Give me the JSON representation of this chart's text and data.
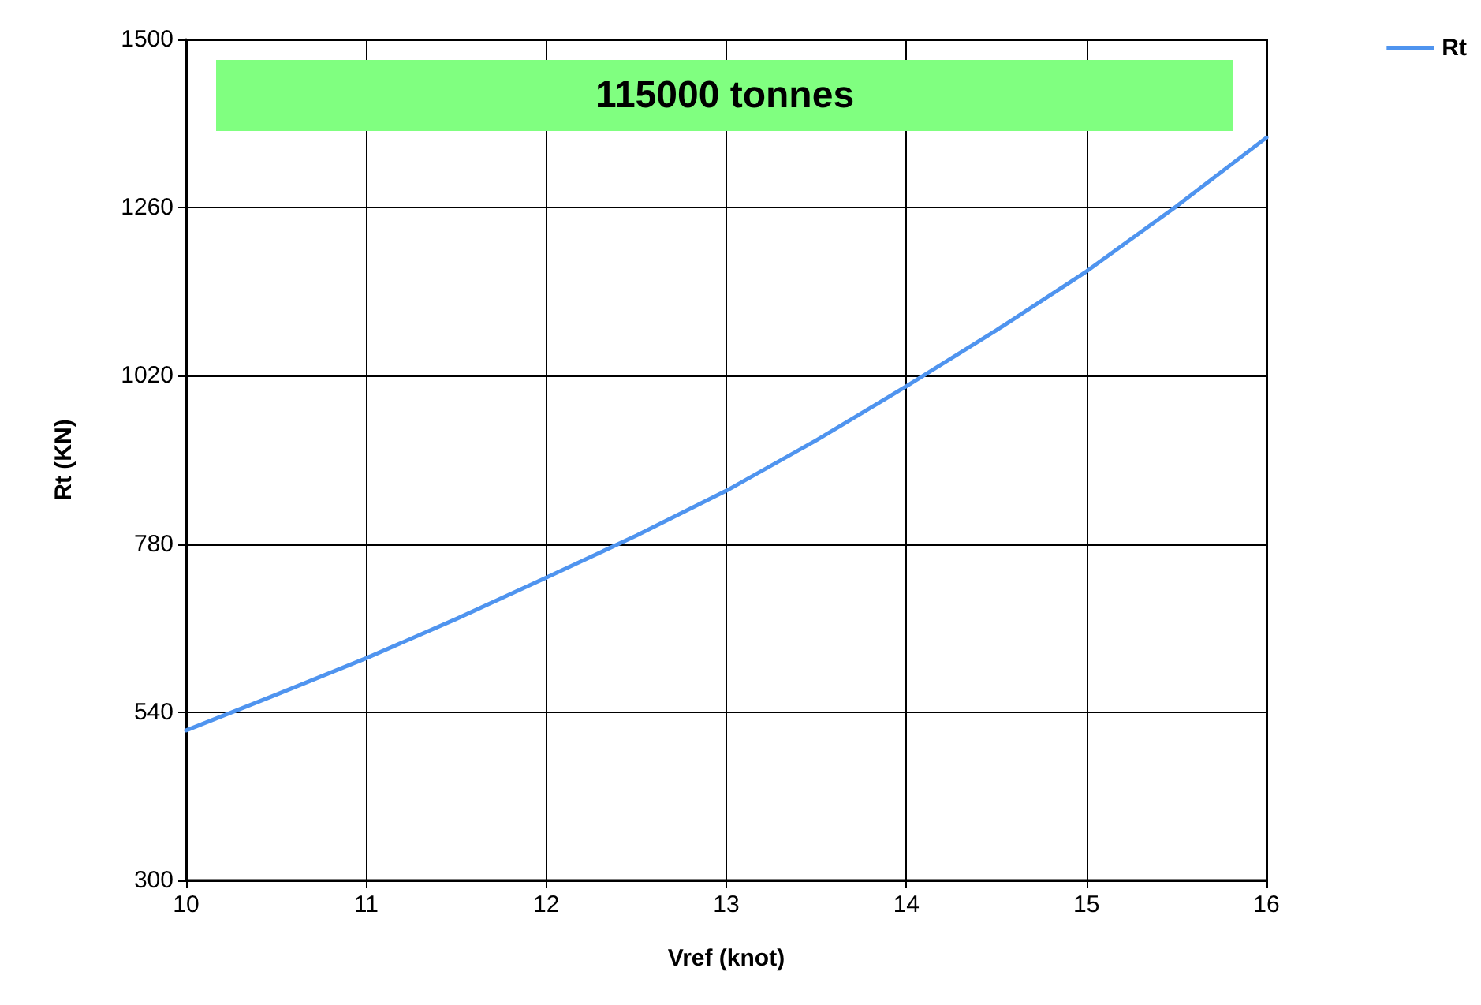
{
  "chart_data": {
    "type": "line",
    "title": "115000 tonnes",
    "xlabel": "Vref (knot)",
    "ylabel": "Rt (KN)",
    "x": [
      10,
      10.5,
      11,
      11.5,
      12,
      12.5,
      13,
      13.5,
      14,
      14.5,
      15,
      15.5,
      16
    ],
    "series": [
      {
        "name": "Rt",
        "color": "#4f94ef",
        "values": [
          514,
          565,
          617,
          673,
          732,
          792,
          856,
          928,
          1005,
          1085,
          1169,
          1262,
          1360
        ]
      }
    ],
    "xlim": [
      10,
      16
    ],
    "xticks": [
      10,
      11,
      12,
      13,
      14,
      15,
      16
    ],
    "ylim": [
      300,
      1500
    ],
    "yticks": [
      300,
      540,
      780,
      1020,
      1260,
      1500
    ],
    "grid": true,
    "legend": "top right",
    "marker": "none",
    "line_style": "solid"
  }
}
